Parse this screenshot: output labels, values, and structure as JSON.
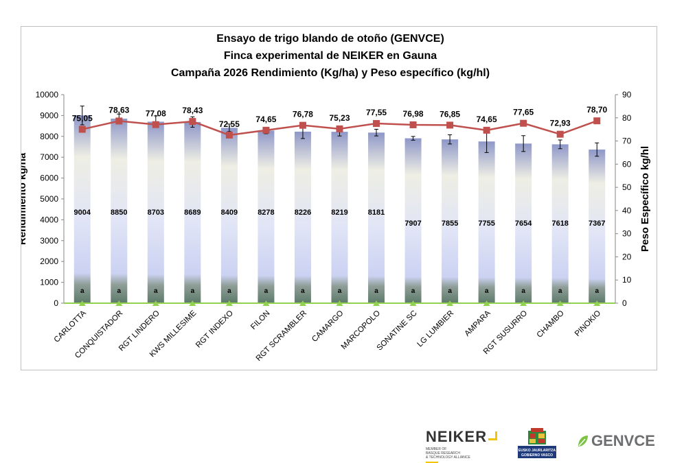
{
  "chart_data": {
    "type": "bar",
    "title": [
      "Ensayo de trigo blando de otoño (GENVCE)",
      "Finca experimental de NEIKER en Gauna",
      "Campaña 2026     Rendimiento  (Kg/ha)  y Peso específico (kg/hl)"
    ],
    "categories": [
      "CARLOTTA",
      "CONQUISTADOR",
      "RGT LINDERO",
      "KWS MILLESIME",
      "RGT INDEXO",
      "FILON",
      "RGT SCRAMBLER",
      "CAMARGO",
      "MARCOPOLO",
      "SONATINE SC",
      "LG LUMBIER",
      "AMPARA",
      "RGT SUSURRO",
      "CHAMBO",
      "PINOKIO"
    ],
    "series": [
      {
        "type": "bar",
        "axis": "left",
        "values": [
          9004,
          8850,
          8703,
          8689,
          8409,
          8278,
          8226,
          8219,
          8181,
          7907,
          7855,
          7755,
          7654,
          7618,
          7367
        ],
        "labels": [
          "9004",
          "8850",
          "8703",
          "8689",
          "8409",
          "8278",
          "8226",
          "8219",
          "8181",
          "7907",
          "7855",
          "7755",
          "7654",
          "7618",
          "7367"
        ],
        "error": [
          450,
          220,
          280,
          250,
          180,
          150,
          330,
          200,
          160,
          90,
          220,
          530,
          380,
          210,
          320
        ],
        "letters": [
          "a",
          "a",
          "a",
          "a",
          "a",
          "a",
          "a",
          "a",
          "a",
          "a",
          "a",
          "a",
          "a",
          "a",
          "a"
        ]
      },
      {
        "type": "line",
        "axis": "right",
        "values": [
          75.05,
          78.63,
          77.08,
          78.43,
          72.55,
          74.65,
          76.78,
          75.23,
          77.55,
          76.98,
          76.85,
          74.65,
          77.65,
          72.93,
          78.7
        ],
        "labels": [
          "75,05",
          "78,63",
          "77,08",
          "78,43",
          "72,55",
          "74,65",
          "76,78",
          "75,23",
          "77,55",
          "76,98",
          "76,85",
          "74,65",
          "77,65",
          "72,93",
          "78,70"
        ]
      }
    ],
    "ylabel": "Rendimiento  kg/ha",
    "y2label": "Peso Específico kg/hl",
    "ylim": [
      0,
      10000
    ],
    "y2lim": [
      0,
      90
    ],
    "yticks": [
      "0",
      "1000",
      "2000",
      "3000",
      "4000",
      "5000",
      "6000",
      "7000",
      "8000",
      "9000",
      "10000"
    ],
    "y2ticks": [
      "0",
      "10",
      "20",
      "30",
      "40",
      "50",
      "60",
      "70",
      "80",
      "90"
    ],
    "colors": {
      "bar_top": "#8e97c8",
      "bar_mid": "#eeeee4",
      "bar_low": "#cbd2f2",
      "bar_base": "#5c7a6a",
      "line": "#c0504d",
      "baseline": "#92d050"
    },
    "grid": false,
    "legend": "none"
  },
  "logos": {
    "neiker": {
      "word": "NEIKER",
      "sub": [
        "MEMBER OF",
        "BASQUE RESEARCH",
        "& TECHNOLOGY ALLIANCE"
      ]
    },
    "gov": {
      "lines": [
        "EUSKO JAURLARITZA",
        "GOBIERNO VASCO"
      ]
    },
    "genvce": {
      "word": "GENVCE"
    }
  }
}
